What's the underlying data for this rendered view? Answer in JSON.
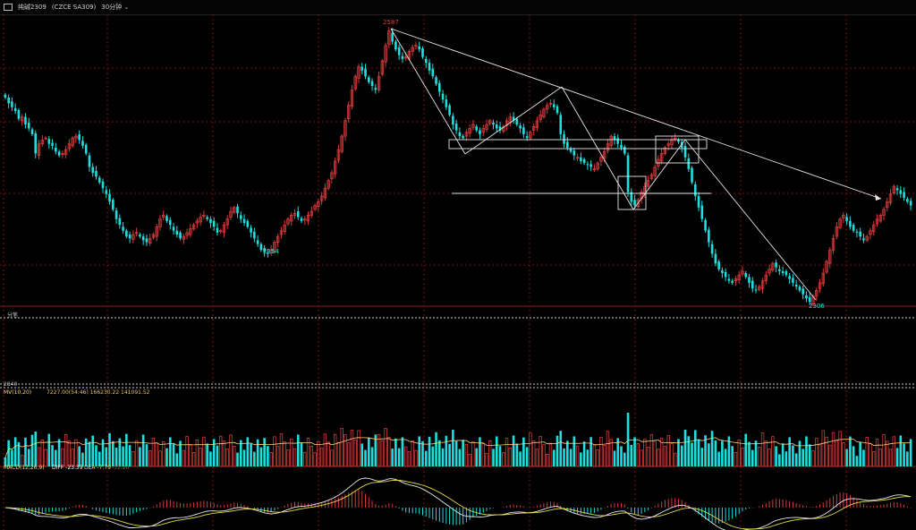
{
  "header": {
    "nav_icon": "rectangle-icon",
    "symbol": "纯碱2309",
    "exchange_code": "(CZCE SA309)",
    "period": "30分钟",
    "period_chevron": "chevron-down-icon"
  },
  "colors": {
    "up": "#d83a3a",
    "down": "#1ce0e0",
    "grid": "#7a1010",
    "trend_lines": "#e6e6e6",
    "dif": "#e8e8e8",
    "dea": "#e8d84a",
    "ma": "#ffd27a"
  },
  "annotations": {
    "high_label": "2587",
    "low_label_1": "2354",
    "low_label_2": "2306",
    "sub_label": "分笔",
    "sub_value": "2840"
  },
  "volume_panel": {
    "title": "MV(10,20)",
    "values": "7227.00(54:46)  166230.22  141091.52"
  },
  "macd_panel": {
    "title": "MACD(12,26,9)",
    "diff": "DIFF -23.39",
    "dea": "DEA -7.79",
    "macd": "-31.20"
  },
  "chart_data": {
    "type": "candlestick",
    "close_series": [
      2518,
      2512,
      2508,
      2504,
      2496,
      2498,
      2490,
      2486,
      2480,
      2460,
      2470,
      2474,
      2476,
      2470,
      2468,
      2462,
      2458,
      2460,
      2464,
      2470,
      2476,
      2478,
      2474,
      2468,
      2460,
      2446,
      2440,
      2436,
      2430,
      2424,
      2418,
      2410,
      2402,
      2392,
      2386,
      2380,
      2374,
      2372,
      2376,
      2378,
      2374,
      2370,
      2368,
      2372,
      2376,
      2384,
      2392,
      2396,
      2390,
      2386,
      2380,
      2376,
      2372,
      2374,
      2378,
      2382,
      2386,
      2390,
      2394,
      2396,
      2392,
      2388,
      2384,
      2378,
      2380,
      2386,
      2392,
      2400,
      2404,
      2398,
      2392,
      2388,
      2384,
      2378,
      2372,
      2366,
      2360,
      2358,
      2356,
      2360,
      2368,
      2374,
      2380,
      2386,
      2392,
      2396,
      2398,
      2394,
      2390,
      2392,
      2396,
      2400,
      2406,
      2410,
      2416,
      2424,
      2432,
      2440,
      2452,
      2464,
      2478,
      2494,
      2510,
      2526,
      2540,
      2550,
      2546,
      2540,
      2534,
      2530,
      2526,
      2540,
      2556,
      2572,
      2587,
      2576,
      2568,
      2562,
      2558,
      2560,
      2566,
      2570,
      2572,
      2568,
      2560,
      2554,
      2546,
      2540,
      2532,
      2524,
      2516,
      2508,
      2500,
      2490,
      2484,
      2478,
      2476,
      2482,
      2486,
      2490,
      2484,
      2480,
      2486,
      2490,
      2494,
      2490,
      2486,
      2484,
      2488,
      2494,
      2498,
      2494,
      2490,
      2486,
      2480,
      2476,
      2482,
      2488,
      2494,
      2500,
      2506,
      2510,
      2512,
      2508,
      2502,
      2480,
      2470,
      2466,
      2462,
      2458,
      2456,
      2452,
      2450,
      2448,
      2446,
      2444,
      2450,
      2456,
      2462,
      2470,
      2478,
      2474,
      2470,
      2466,
      2460,
      2420,
      2410,
      2406,
      2412,
      2420,
      2426,
      2432,
      2438,
      2446,
      2454,
      2460,
      2466,
      2470,
      2474,
      2476,
      2472,
      2466,
      2456,
      2444,
      2430,
      2416,
      2404,
      2392,
      2380,
      2368,
      2356,
      2346,
      2340,
      2336,
      2332,
      2328,
      2326,
      2330,
      2334,
      2338,
      2332,
      2326,
      2320,
      2318,
      2322,
      2328,
      2334,
      2340,
      2346,
      2342,
      2338,
      2336,
      2334,
      2330,
      2326,
      2322,
      2318,
      2314,
      2310,
      2306,
      2312,
      2318,
      2326,
      2336,
      2348,
      2360,
      2372,
      2384,
      2392,
      2396,
      2390,
      2384,
      2380,
      2378,
      2374,
      2370,
      2374,
      2380,
      2386,
      2392,
      2396,
      2402,
      2410,
      2418,
      2426,
      2422,
      2418,
      2414,
      2410,
      2406
    ]
  }
}
